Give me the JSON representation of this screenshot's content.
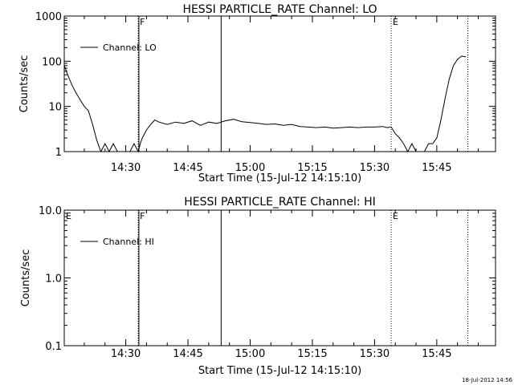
{
  "footer_timestamp": "18-Jul-2012 14:56",
  "chart_data": [
    {
      "type": "line",
      "title": "HESSI PARTICLE_RATE Channel: LO",
      "xlabel": "Start Time (15-Jul-12 14:15:10)",
      "ylabel": "Counts/sec",
      "yscale": "log",
      "xlim": [
        "14:15:10",
        "15:59:10"
      ],
      "ylim": [
        1,
        1000
      ],
      "x_ticks": [
        "14:30",
        "14:45",
        "15:00",
        "15:15",
        "15:30",
        "15:45"
      ],
      "y_ticks": [
        "1",
        "10",
        "100",
        "1000"
      ],
      "legend": {
        "position": "top-left",
        "entries": [
          "Channel: LO"
        ]
      },
      "series": [
        {
          "name": "Channel: LO",
          "x": [
            "14:15:10",
            "14:16:00",
            "14:17:00",
            "14:18:00",
            "14:19:00",
            "14:20:00",
            "14:21:00",
            "14:22:00",
            "14:23:00",
            "14:24:00",
            "14:25:00",
            "14:26:00",
            "14:27:00",
            "14:28:00",
            "14:29:00",
            "14:30:00",
            "14:31:00",
            "14:32:00",
            "14:33:00",
            "14:33:30",
            "14:34:00",
            "14:35:00",
            "14:36:00",
            "14:37:00",
            "14:38:00",
            "14:40:00",
            "14:42:00",
            "14:44:00",
            "14:46:00",
            "14:48:00",
            "14:50:00",
            "14:52:00",
            "14:54:00",
            "14:56:00",
            "14:58:00",
            "15:00:00",
            "15:02:00",
            "15:04:00",
            "15:06:00",
            "15:08:00",
            "15:10:00",
            "15:12:00",
            "15:14:00",
            "15:16:00",
            "15:18:00",
            "15:20:00",
            "15:22:00",
            "15:24:00",
            "15:26:00",
            "15:28:00",
            "15:30:00",
            "15:32:00",
            "15:33:00",
            "15:34:00",
            "15:35:00",
            "15:36:00",
            "15:37:00",
            "15:38:00",
            "15:39:00",
            "15:40:00",
            "15:41:00",
            "15:42:00",
            "15:43:00",
            "15:44:00",
            "15:45:00",
            "15:46:00",
            "15:47:00",
            "15:48:00",
            "15:49:00",
            "15:50:00",
            "15:51:00",
            "15:52:00"
          ],
          "y": [
            80,
            50,
            30,
            20,
            14,
            10,
            8,
            4,
            1.8,
            1,
            1.5,
            1,
            1.5,
            1,
            1,
            1,
            1,
            1.5,
            1,
            1.5,
            2,
            3,
            4,
            5,
            4.5,
            4,
            4.5,
            4.2,
            4.8,
            3.8,
            4.5,
            4.2,
            4.8,
            5.2,
            4.6,
            4.4,
            4.2,
            4,
            4.1,
            3.8,
            4,
            3.6,
            3.5,
            3.4,
            3.5,
            3.3,
            3.4,
            3.5,
            3.4,
            3.5,
            3.5,
            3.6,
            3.4,
            3.5,
            2.5,
            2,
            1.5,
            1,
            1.5,
            1,
            1,
            1,
            1.5,
            1.5,
            2,
            5,
            15,
            40,
            80,
            110,
            130,
            125
          ]
        }
      ],
      "vlines": [
        {
          "x": "14:33:00",
          "style": "dotted",
          "label": "F"
        },
        {
          "x": "14:33:10",
          "style": "solid",
          "label": ""
        },
        {
          "x": "14:53:00",
          "style": "solid",
          "label": ""
        },
        {
          "x": "15:34:00",
          "style": "dotted",
          "label": "E"
        },
        {
          "x": "15:52:30",
          "style": "dotted",
          "label": ""
        }
      ]
    },
    {
      "type": "line",
      "title": "HESSI PARTICLE_RATE Channel: HI",
      "xlabel": "Start Time (15-Jul-12 14:15:10)",
      "ylabel": "Counts/sec",
      "yscale": "log",
      "xlim": [
        "14:15:10",
        "15:59:10"
      ],
      "ylim": [
        0.1,
        10
      ],
      "x_ticks": [
        "14:30",
        "14:45",
        "15:00",
        "15:15",
        "15:30",
        "15:45"
      ],
      "y_ticks": [
        "0.1",
        "1.0",
        "10.0"
      ],
      "legend": {
        "position": "top-left",
        "entries": [
          "Channel: HI"
        ]
      },
      "series": [
        {
          "name": "Channel: HI",
          "x": [],
          "y": []
        }
      ],
      "vlines": [
        {
          "x": "14:15:10",
          "style": "solid",
          "label": "E"
        },
        {
          "x": "14:33:00",
          "style": "dotted",
          "label": "F"
        },
        {
          "x": "14:33:10",
          "style": "solid",
          "label": ""
        },
        {
          "x": "14:53:00",
          "style": "solid",
          "label": ""
        },
        {
          "x": "15:34:00",
          "style": "dotted",
          "label": "E"
        },
        {
          "x": "15:52:30",
          "style": "dotted",
          "label": ""
        }
      ]
    }
  ]
}
